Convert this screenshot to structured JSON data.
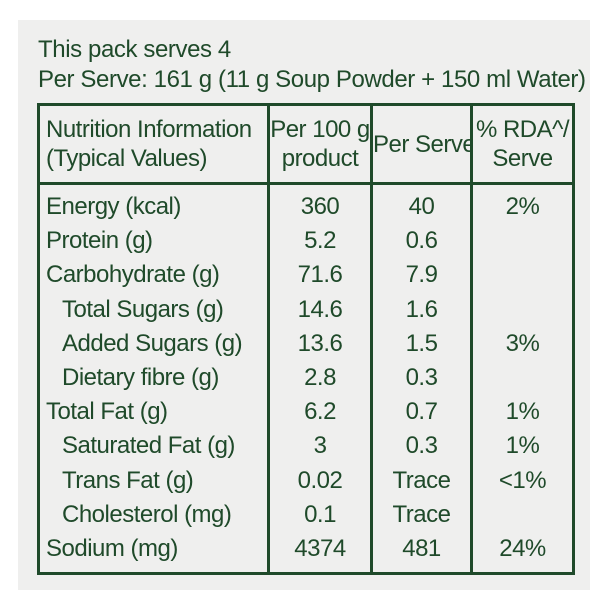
{
  "header": {
    "line1": "This pack serves 4",
    "line2": "Per Serve: 161 g (11 g Soup Powder + 150 ml Water)"
  },
  "table": {
    "columns": [
      [
        "Nutrition Information",
        "(Typical Values)"
      ],
      [
        "Per 100 g",
        "product"
      ],
      [
        "Per Serve"
      ],
      [
        "% RDA^/",
        "Serve"
      ]
    ],
    "rows": [
      {
        "nutrient": "Energy (kcal)",
        "per100g": "360",
        "perServe": "40",
        "rda": "2%",
        "indent": false
      },
      {
        "nutrient": "Protein (g)",
        "per100g": "5.2",
        "perServe": "0.6",
        "rda": "",
        "indent": false
      },
      {
        "nutrient": "Carbohydrate (g)",
        "per100g": "71.6",
        "perServe": "7.9",
        "rda": "",
        "indent": false
      },
      {
        "nutrient": "Total Sugars (g)",
        "per100g": "14.6",
        "perServe": "1.6",
        "rda": "",
        "indent": true
      },
      {
        "nutrient": "Added Sugars (g)",
        "per100g": "13.6",
        "perServe": "1.5",
        "rda": "3%",
        "indent": true
      },
      {
        "nutrient": "Dietary fibre (g)",
        "per100g": "2.8",
        "perServe": "0.3",
        "rda": "",
        "indent": true
      },
      {
        "nutrient": "Total Fat (g)",
        "per100g": "6.2",
        "perServe": "0.7",
        "rda": "1%",
        "indent": false
      },
      {
        "nutrient": "Saturated Fat (g)",
        "per100g": "3",
        "perServe": "0.3",
        "rda": "1%",
        "indent": true
      },
      {
        "nutrient": "Trans Fat (g)",
        "per100g": "0.02",
        "perServe": "Trace",
        "rda": "<1%",
        "indent": true
      },
      {
        "nutrient": "Cholesterol (mg)",
        "per100g": "0.1",
        "perServe": "Trace",
        "rda": "",
        "indent": true
      },
      {
        "nutrient": "Sodium (mg)",
        "per100g": "4374",
        "perServe": "481",
        "rda": "24%",
        "indent": false
      }
    ]
  },
  "colors": {
    "text": "#1f4a2a",
    "background": "#efefee"
  }
}
